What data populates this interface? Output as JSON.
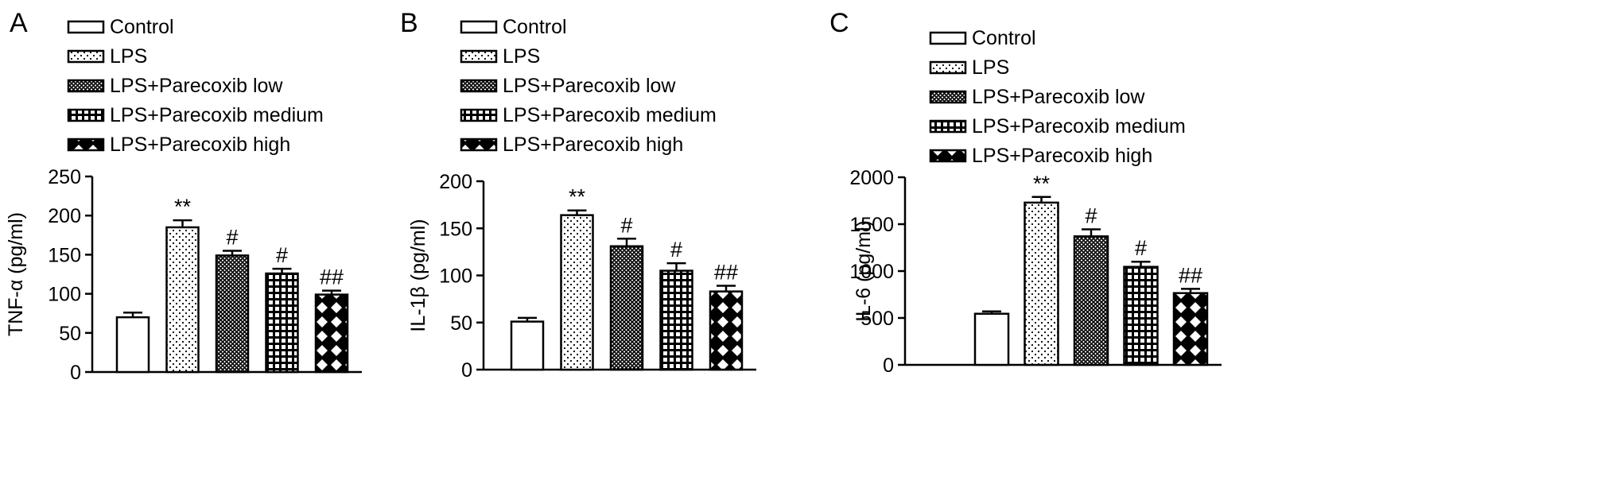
{
  "chart_data": [
    {
      "panel_label": "A",
      "type": "bar",
      "ylabel": "TNF-α (pg/ml)",
      "ylim": [
        0,
        250
      ],
      "ticks": [
        0,
        50,
        100,
        150,
        200,
        250
      ],
      "categories": [
        "Control",
        "LPS",
        "LPS+Parecoxib low",
        "LPS+Parecoxib medium",
        "LPS+Parecoxib high"
      ],
      "values": [
        70,
        185,
        149,
        126,
        99
      ],
      "errors": [
        6,
        9,
        6,
        6,
        5
      ],
      "annotations": [
        "",
        "**",
        "#",
        "#",
        "##"
      ],
      "legend": [
        "Control",
        "LPS",
        "LPS+Parecoxib low",
        "LPS+Parecoxib medium",
        "LPS+Parecoxib high"
      ]
    },
    {
      "panel_label": "B",
      "type": "bar",
      "ylabel": "IL-1β (pg/ml)",
      "ylim": [
        0,
        200
      ],
      "ticks": [
        0,
        50,
        100,
        150,
        200
      ],
      "categories": [
        "Control",
        "LPS",
        "LPS+Parecoxib low",
        "LPS+Parecoxib medium",
        "LPS+Parecoxib high"
      ],
      "values": [
        51,
        164,
        131,
        105,
        83
      ],
      "errors": [
        4,
        5,
        8,
        8,
        6
      ],
      "annotations": [
        "",
        "**",
        "#",
        "#",
        "##"
      ],
      "legend": [
        "Control",
        "LPS",
        "LPS+Parecoxib low",
        "LPS+Parecoxib medium",
        "LPS+Parecoxib high"
      ]
    },
    {
      "panel_label": "C",
      "type": "bar",
      "ylabel": "IL-6 (pg/ml)",
      "ylim": [
        0,
        2000
      ],
      "ticks": [
        0,
        500,
        1000,
        1500,
        2000
      ],
      "categories": [
        "Control",
        "LPS",
        "LPS+Parecoxib low",
        "LPS+Parecoxib medium",
        "LPS+Parecoxib high"
      ],
      "values": [
        545,
        1730,
        1370,
        1045,
        765
      ],
      "errors": [
        25,
        60,
        75,
        55,
        45
      ],
      "annotations": [
        "",
        "**",
        "#",
        "#",
        "##"
      ],
      "legend": [
        "Control",
        "LPS",
        "LPS+Parecoxib low",
        "LPS+Parecoxib medium",
        "LPS+Parecoxib high"
      ]
    }
  ]
}
